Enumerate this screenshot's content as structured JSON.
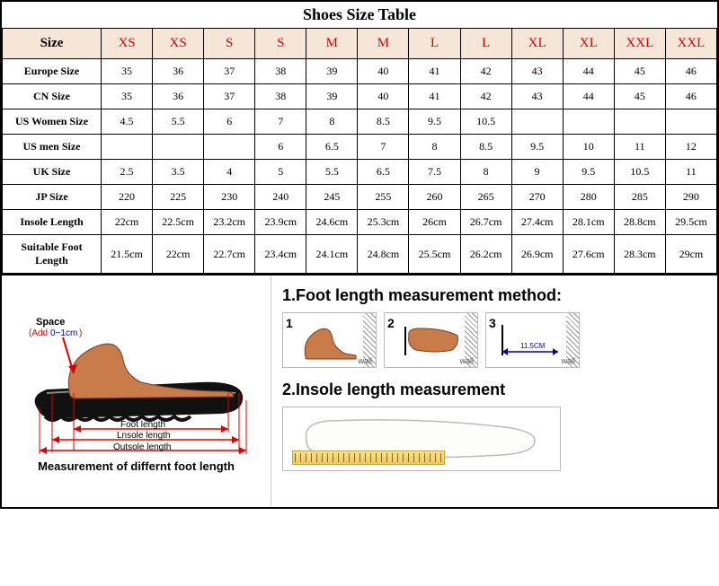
{
  "title": "Shoes Size Table",
  "table": {
    "sizeLabel": "Size",
    "sizeHeaders": [
      "XS",
      "XS",
      "S",
      "S",
      "M",
      "M",
      "L",
      "L",
      "XL",
      "XL",
      "XXL",
      "XXL"
    ],
    "rows": [
      {
        "label": "Europe Size",
        "cells": [
          "35",
          "36",
          "37",
          "38",
          "39",
          "40",
          "41",
          "42",
          "43",
          "44",
          "45",
          "46"
        ]
      },
      {
        "label": "CN Size",
        "cells": [
          "35",
          "36",
          "37",
          "38",
          "39",
          "40",
          "41",
          "42",
          "43",
          "44",
          "45",
          "46"
        ]
      },
      {
        "label": "US Women Size",
        "cells": [
          "4.5",
          "5.5",
          "6",
          "7",
          "8",
          "8.5",
          "9.5",
          "10.5",
          "",
          "",
          "",
          ""
        ]
      },
      {
        "label": "US men Size",
        "cells": [
          "",
          "",
          "",
          "6",
          "6.5",
          "7",
          "8",
          "8.5",
          "9.5",
          "10",
          "11",
          "12"
        ]
      },
      {
        "label": "UK Size",
        "cells": [
          "2.5",
          "3.5",
          "4",
          "5",
          "5.5",
          "6.5",
          "7.5",
          "8",
          "9",
          "9.5",
          "10.5",
          "11"
        ]
      },
      {
        "label": "JP Size",
        "cells": [
          "220",
          "225",
          "230",
          "240",
          "245",
          "255",
          "260",
          "265",
          "270",
          "280",
          "285",
          "290"
        ]
      },
      {
        "label": "Insole Length",
        "cells": [
          "22cm",
          "22.5cm",
          "23.2cm",
          "23.9cm",
          "24.6cm",
          "25.3cm",
          "26cm",
          "26.7cm",
          "27.4cm",
          "28.1cm",
          "28.8cm",
          "29.5cm"
        ]
      },
      {
        "label": "Suitable Foot Length",
        "cells": [
          "21.5cm",
          "22cm",
          "22.7cm",
          "23.4cm",
          "24.1cm",
          "24.8cm",
          "25.5cm",
          "26.2cm",
          "26.9cm",
          "27.6cm",
          "28.3cm",
          "29cm"
        ]
      }
    ]
  },
  "diagram": {
    "spaceLabel": "Space",
    "spaceAdd": "(Add 0~1cm)",
    "footLength": "Foot length",
    "insoleLength": "Lnsole length",
    "outsoleLength": "Outsole length",
    "caption": "Measurement of differnt foot length"
  },
  "method": {
    "title1": "1.Foot length measurement method:",
    "title2": "2.Insole length measurement",
    "wall": "wall",
    "step3size": "11.5CM"
  },
  "style": {
    "headerBg": "#f5e6d8",
    "headerColor": "#d00",
    "border": "#000",
    "footFill": "#c97b4a",
    "footStroke": "#7a3e1e",
    "arrowColor": "#d00",
    "tapeColor": "#f5c94a"
  }
}
